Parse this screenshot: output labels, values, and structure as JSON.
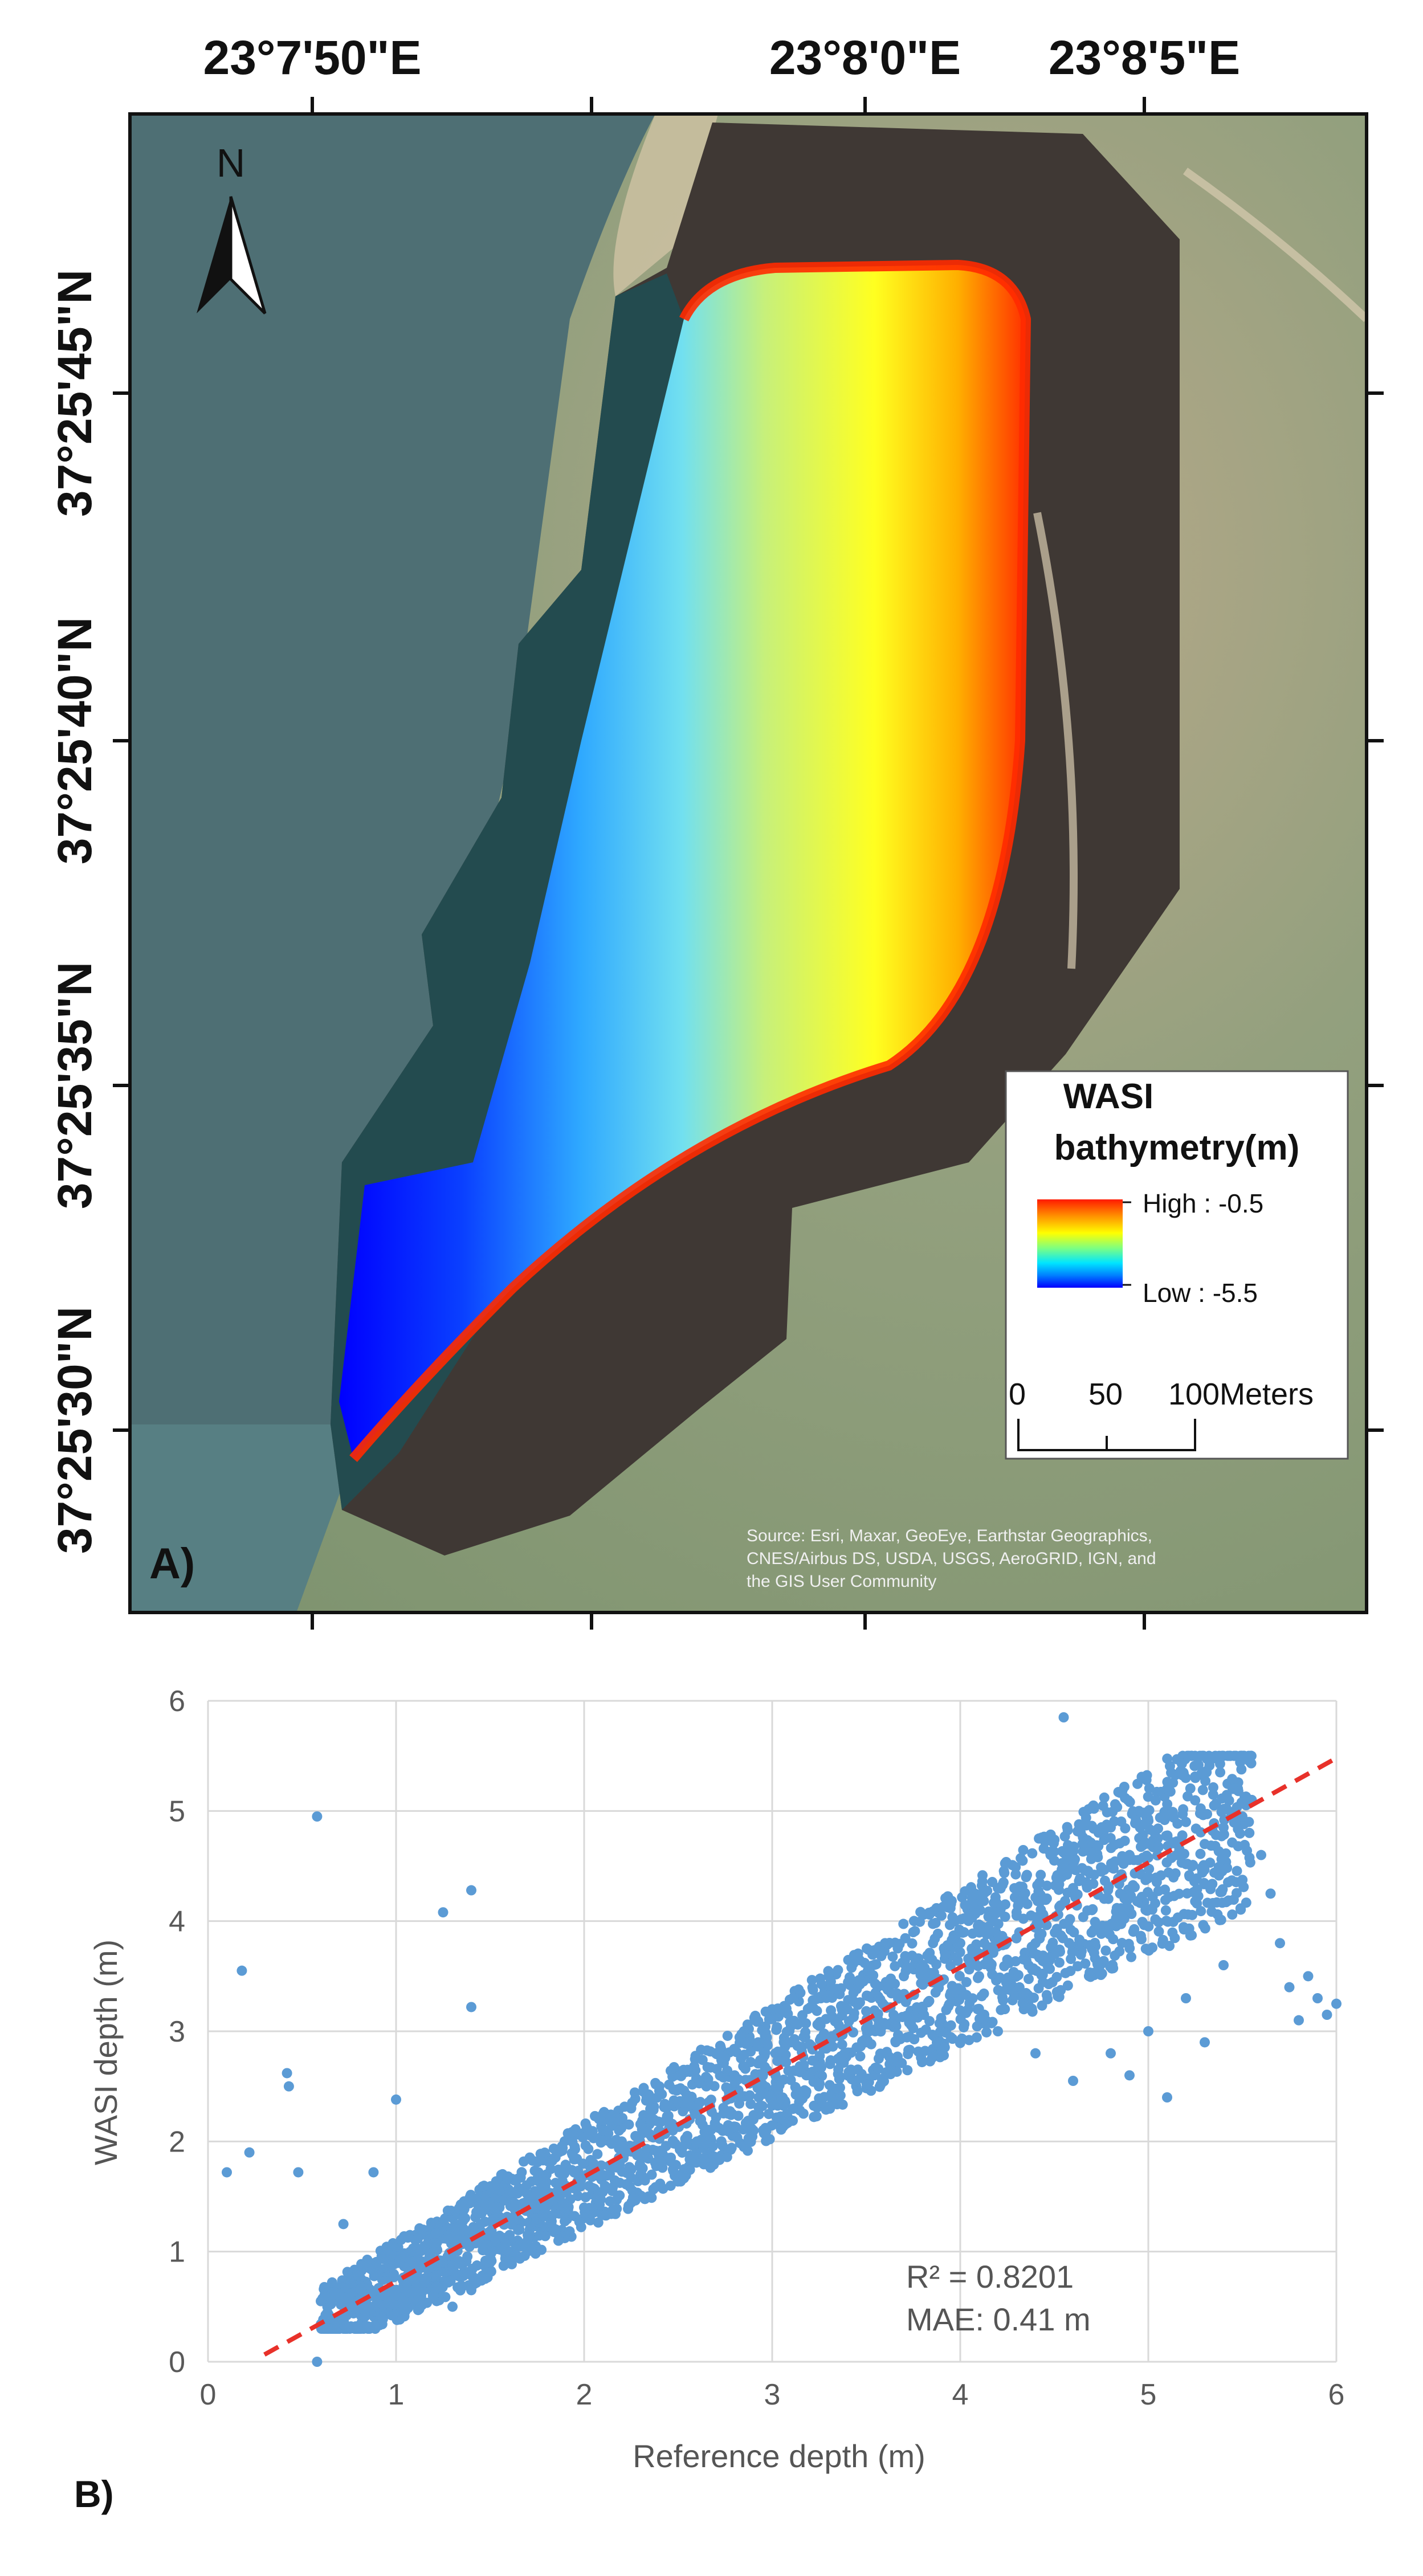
{
  "map": {
    "panel_label": "A)",
    "lon_labels": [
      "23°7'50\"E",
      "23°8'0\"E",
      "23°8'5\"E"
    ],
    "lat_labels": [
      "37°25'45\"N",
      "37°25'40\"N",
      "37°25'35\"N",
      "37°25'30\"N"
    ],
    "north_arrow": {
      "letter": "N",
      "icon": "north-arrow-icon"
    },
    "legend": {
      "title_line1": "WASI",
      "title_line2": "bathymetry(m)",
      "high_label": "High : -0.5",
      "low_label": "Low : -5.5",
      "gradient_colors": [
        "#ff1a00",
        "#ff8c00",
        "#ffff00",
        "#7fff7f",
        "#00e5ff",
        "#0080ff",
        "#0000ff"
      ]
    },
    "scale_bar": {
      "ticks": [
        "0",
        "50",
        "100"
      ],
      "unit": "Meters"
    },
    "attribution": [
      "Source: Esri, Maxar, GeoEye, Earthstar Geographics,",
      "CNES/Airbus DS, USDA, USGS, AeroGRID, IGN, and",
      "the GIS User Community"
    ],
    "colors": {
      "sea": "#4e6f74",
      "land": "#8c9c78",
      "rock": "#3b3330",
      "frame": "#111111"
    }
  },
  "chart_data": {
    "type": "scatter",
    "panel_label": "B)",
    "xlabel": "Reference depth (m)",
    "ylabel": "WASI depth (m)",
    "xlim": [
      0,
      6
    ],
    "ylim": [
      0,
      6
    ],
    "xticks": [
      "0",
      "1",
      "2",
      "3",
      "4",
      "5",
      "6"
    ],
    "yticks": [
      "0",
      "1",
      "2",
      "3",
      "4",
      "5",
      "6"
    ],
    "grid": true,
    "point_color": "#5b9bd5",
    "trendline": {
      "color": "#e8312a",
      "style": "dashed",
      "slope": 0.95,
      "intercept": -0.22
    },
    "annotations": [
      "R² = 0.8201",
      "MAE: 0.41 m"
    ],
    "points": [
      [
        0.58,
        0.0
      ],
      [
        0.6,
        0.55
      ],
      [
        0.62,
        0.6
      ],
      [
        0.66,
        0.72
      ],
      [
        0.7,
        0.62
      ],
      [
        0.75,
        0.5
      ],
      [
        0.8,
        0.78
      ],
      [
        0.88,
        0.5
      ],
      [
        0.95,
        0.85
      ],
      [
        1.0,
        0.6
      ],
      [
        1.05,
        0.95
      ],
      [
        1.1,
        0.75
      ],
      [
        1.15,
        1.05
      ],
      [
        1.2,
        0.6
      ],
      [
        1.25,
        0.9
      ],
      [
        1.3,
        0.5
      ],
      [
        1.35,
        1.1
      ],
      [
        1.4,
        0.65
      ],
      [
        1.45,
        1.25
      ],
      [
        1.5,
        0.9
      ],
      [
        1.55,
        1.4
      ],
      [
        1.6,
        1.0
      ],
      [
        1.65,
        1.55
      ],
      [
        1.7,
        1.15
      ],
      [
        1.75,
        1.3
      ],
      [
        1.8,
        1.7
      ],
      [
        1.85,
        1.2
      ],
      [
        1.9,
        1.6
      ],
      [
        1.95,
        1.95
      ],
      [
        2.0,
        1.4
      ],
      [
        2.05,
        1.8
      ],
      [
        2.1,
        2.1
      ],
      [
        2.15,
        1.55
      ],
      [
        2.2,
        2.0
      ],
      [
        2.25,
        2.3
      ],
      [
        2.3,
        1.7
      ],
      [
        2.35,
        2.2
      ],
      [
        2.4,
        2.5
      ],
      [
        2.45,
        1.85
      ],
      [
        2.5,
        2.35
      ],
      [
        2.55,
        2.65
      ],
      [
        2.6,
        2.0
      ],
      [
        2.65,
        2.5
      ],
      [
        2.7,
        2.8
      ],
      [
        2.75,
        2.1
      ],
      [
        2.8,
        2.6
      ],
      [
        2.85,
        3.0
      ],
      [
        2.9,
        2.2
      ],
      [
        2.95,
        2.75
      ],
      [
        3.0,
        3.2
      ],
      [
        3.05,
        2.4
      ],
      [
        3.1,
        2.9
      ],
      [
        3.15,
        3.35
      ],
      [
        3.2,
        2.6
      ],
      [
        3.25,
        3.05
      ],
      [
        3.3,
        3.5
      ],
      [
        3.35,
        2.75
      ],
      [
        3.4,
        3.2
      ],
      [
        3.45,
        3.65
      ],
      [
        3.5,
        2.9
      ],
      [
        3.55,
        3.35
      ],
      [
        3.6,
        3.8
      ],
      [
        3.65,
        3.05
      ],
      [
        3.7,
        3.5
      ],
      [
        3.75,
        3.9
      ],
      [
        3.8,
        3.2
      ],
      [
        3.85,
        3.65
      ],
      [
        3.9,
        4.05
      ],
      [
        3.95,
        3.35
      ],
      [
        4.0,
        3.8
      ],
      [
        4.05,
        4.15
      ],
      [
        4.1,
        3.5
      ],
      [
        4.15,
        3.95
      ],
      [
        4.2,
        4.3
      ],
      [
        4.25,
        3.65
      ],
      [
        4.3,
        4.05
      ],
      [
        4.35,
        4.4
      ],
      [
        4.4,
        3.8
      ],
      [
        4.45,
        4.2
      ],
      [
        4.5,
        4.55
      ],
      [
        4.55,
        5.85
      ],
      [
        4.6,
        4.3
      ],
      [
        4.65,
        4.7
      ],
      [
        4.7,
        4.1
      ],
      [
        4.75,
        4.45
      ],
      [
        4.8,
        4.85
      ],
      [
        4.85,
        4.25
      ],
      [
        4.9,
        4.6
      ],
      [
        4.95,
        5.0
      ],
      [
        5.0,
        4.4
      ],
      [
        5.05,
        4.75
      ],
      [
        5.1,
        5.2
      ],
      [
        5.15,
        4.6
      ],
      [
        5.2,
        4.9
      ],
      [
        5.25,
        5.3
      ],
      [
        5.3,
        4.7
      ],
      [
        5.35,
        5.05
      ],
      [
        5.4,
        4.85
      ],
      [
        5.45,
        5.2
      ],
      [
        5.5,
        4.95
      ],
      [
        5.55,
        5.1
      ],
      [
        5.6,
        4.6
      ],
      [
        5.65,
        4.25
      ],
      [
        5.7,
        3.8
      ],
      [
        5.75,
        3.4
      ],
      [
        5.8,
        3.1
      ],
      [
        5.85,
        3.5
      ],
      [
        5.9,
        3.3
      ],
      [
        5.95,
        3.15
      ],
      [
        6.0,
        3.25
      ],
      [
        5.4,
        3.6
      ],
      [
        5.2,
        3.3
      ],
      [
        5.0,
        3.0
      ],
      [
        4.8,
        2.8
      ],
      [
        4.6,
        2.55
      ],
      [
        4.4,
        2.8
      ],
      [
        4.2,
        3.0
      ],
      [
        5.1,
        2.4
      ],
      [
        5.3,
        2.9
      ],
      [
        4.9,
        2.6
      ],
      [
        0.1,
        1.72
      ],
      [
        0.18,
        3.55
      ],
      [
        0.22,
        1.9
      ],
      [
        0.42,
        2.62
      ],
      [
        0.43,
        2.5
      ],
      [
        0.48,
        1.72
      ],
      [
        0.58,
        4.95
      ],
      [
        0.88,
        1.72
      ],
      [
        1.0,
        2.38
      ],
      [
        1.25,
        4.08
      ],
      [
        1.4,
        4.28
      ],
      [
        1.4,
        3.22
      ],
      [
        0.72,
        1.25
      ]
    ]
  }
}
